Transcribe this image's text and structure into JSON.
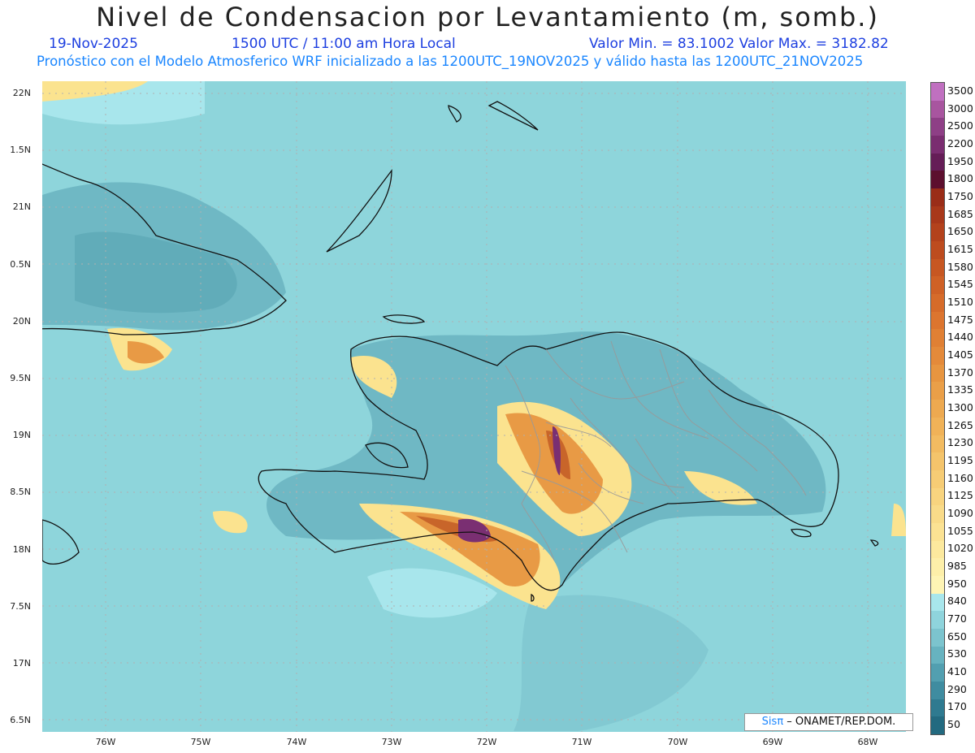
{
  "header": {
    "title": "Nivel de Condensacion por Levantamiento (m, somb.)",
    "date": "19-Nov-2025",
    "time": "1500 UTC / 11:00 am Hora Local",
    "min_max": "Valor Min. = 83.1002  Valor Max. = 3182.82",
    "model_line": "Pronóstico con el Modelo Atmosferico WRF inicializado a las 1200UTC_19NOV2025 y válido hasta las  1200UTC_21NOV2025"
  },
  "axes": {
    "lat_labels": [
      "22N",
      "1.5N",
      "21N",
      "0.5N",
      "20N",
      "9.5N",
      "19N",
      "8.5N",
      "18N",
      "7.5N",
      "17N",
      "6.5N"
    ],
    "lon_labels": [
      "76W",
      "75W",
      "74W",
      "73W",
      "72W",
      "71W",
      "70W",
      "69W",
      "68W"
    ]
  },
  "colorbar": {
    "labels": [
      "3500",
      "3000",
      "2500",
      "2200",
      "1950",
      "1800",
      "1750",
      "1685",
      "1650",
      "1615",
      "1580",
      "1545",
      "1510",
      "1475",
      "1440",
      "1405",
      "1370",
      "1335",
      "1300",
      "1265",
      "1230",
      "1195",
      "1160",
      "1125",
      "1090",
      "1055",
      "1020",
      "985",
      "950",
      "840",
      "770",
      "650",
      "530",
      "410",
      "290",
      "170",
      "50"
    ],
    "colors": [
      "#c070c0",
      "#a8559f",
      "#8e3f86",
      "#7a2d70",
      "#651d57",
      "#5c0f2e",
      "#9a2d18",
      "#a8381a",
      "#b3421c",
      "#bd4c1f",
      "#c75722",
      "#cf6126",
      "#d66b2a",
      "#dc752f",
      "#e08034",
      "#e48a3a",
      "#e79540",
      "#ea9f48",
      "#eda950",
      "#f0b258",
      "#f2bb61",
      "#f4c46b",
      "#f6cc75",
      "#f8d47f",
      "#f9db89",
      "#fbe293",
      "#fce99e",
      "#fdefa9",
      "#fef4b4",
      "#a8e6ec",
      "#8fd4dc",
      "#7cc4ce",
      "#67b3c0",
      "#529fb0",
      "#3f8ca0",
      "#2f7a90",
      "#236a80"
    ]
  },
  "map_colors": {
    "sea": "#8ed5db",
    "low": "#6fb8c4",
    "yellow": "#fbe38f",
    "orange": "#e89a45",
    "brown": "#c8652a",
    "purple": "#7a2f72",
    "coast": "#111111",
    "border": "#999999"
  },
  "credit": {
    "brand": "Sis",
    "pi": "π",
    "text": "– ONAMET/REP.DOM."
  }
}
